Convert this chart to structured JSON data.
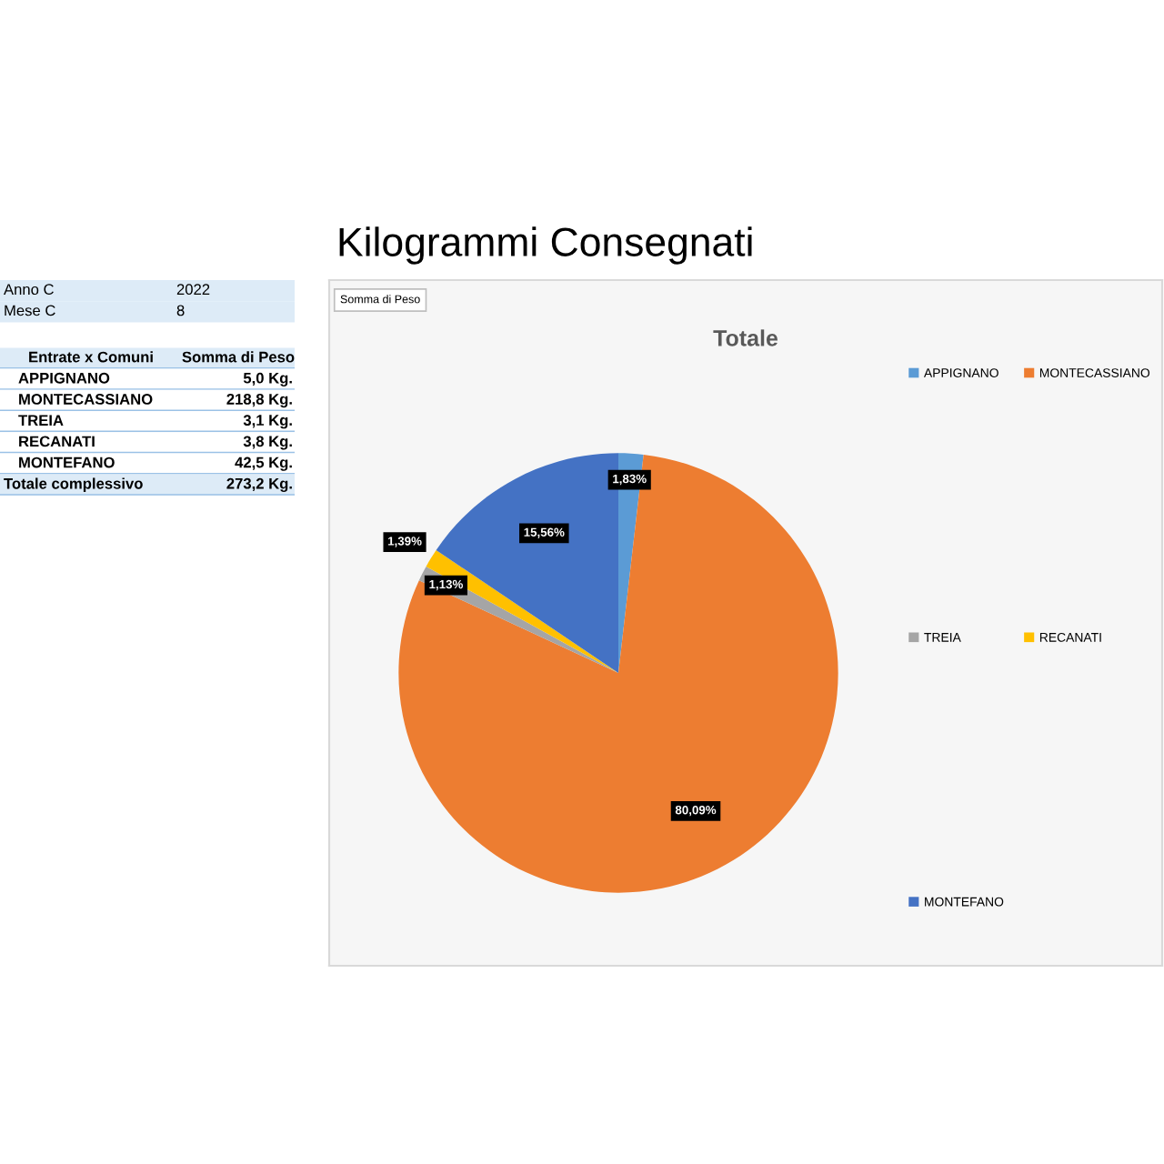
{
  "chart_data": [
    {
      "type": "other",
      "annotations": [
        "Anno C",
        "2022",
        "Mese C",
        "8",
        "Entrate x Comuni",
        "Somma di Peso",
        "APPIGNANO",
        "5,0 Kg.",
        "MONTECASSIANO",
        "218,8 Kg.",
        "TREIA",
        "3,1 Kg.",
        "RECANATI",
        "3,8 Kg.",
        "MONTEFANO",
        "42,5 Kg.",
        "Totale complessivo",
        "273,2 Kg."
      ]
    },
    {
      "type": "pie",
      "title": "Kilogrammi Consegnati",
      "subtitle": "Totale",
      "annotations": [
        "Somma di Peso"
      ],
      "categories": [
        "APPIGNANO",
        "MONTECASSIANO",
        "TREIA",
        "RECANATI",
        "MONTEFANO"
      ],
      "values": [
        1.83,
        80.09,
        1.13,
        1.39,
        15.56
      ],
      "colors": [
        "#5b9bd5",
        "#ed7d31",
        "#a5a5a5",
        "#ffc000",
        "#4472c4"
      ],
      "value_labels": [
        "1,83%",
        "80,09%",
        "1,13%",
        "1,39%",
        "15,56%"
      ],
      "legend": "right"
    }
  ]
}
